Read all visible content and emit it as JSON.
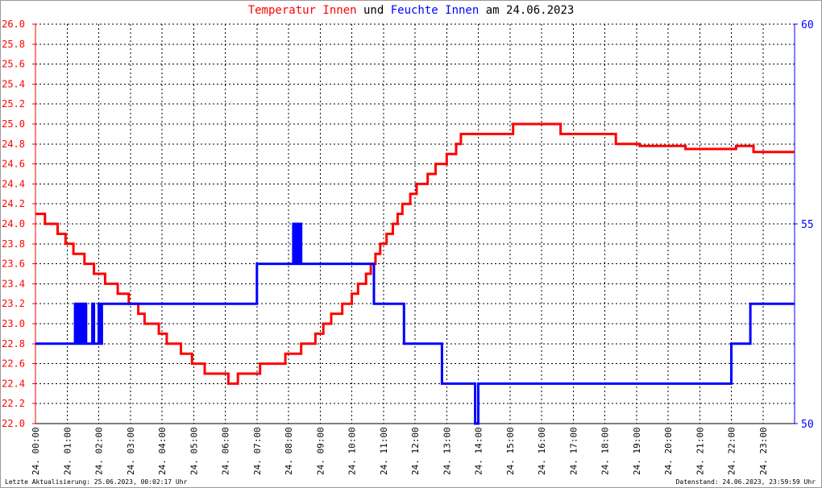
{
  "title": {
    "part1": "Temperatur Innen",
    "part2": "und",
    "part3": "Feuchte Innen",
    "part4": "am 24.06.2023",
    "color1": "#ff0000",
    "color2": "#000000",
    "color3": "#0000ff"
  },
  "footer": {
    "left": "Letzte Aktualisierung: 25.06.2023, 00:02:17 Uhr",
    "right": "Datenstand: 24.06.2023, 23:59:59 Uhr"
  },
  "chart_data": {
    "type": "line",
    "title": "Temperatur Innen und Feuchte Innen am 24.06.2023",
    "xlabel": "",
    "grid": true,
    "x_range": [
      0,
      24
    ],
    "x_ticks": [
      "24. 00:00",
      "24. 01:00",
      "24. 02:00",
      "24. 03:00",
      "24. 04:00",
      "24. 05:00",
      "24. 06:00",
      "24. 07:00",
      "24. 08:00",
      "24. 09:00",
      "24. 10:00",
      "24. 11:00",
      "24. 12:00",
      "24. 13:00",
      "24. 14:00",
      "24. 15:00",
      "24. 16:00",
      "24. 17:00",
      "24. 18:00",
      "24. 19:00",
      "24. 20:00",
      "24. 21:00",
      "24. 22:00",
      "24. 23:00"
    ],
    "y_left": {
      "min": 22.0,
      "max": 26.0,
      "color": "#ff0000",
      "ticks": [
        "22.0",
        "22.2",
        "22.4",
        "22.6",
        "22.8",
        "23.0",
        "23.2",
        "23.4",
        "23.6",
        "23.8",
        "24.0",
        "24.2",
        "24.4",
        "24.6",
        "24.8",
        "25.0",
        "25.2",
        "25.4",
        "25.6",
        "25.8",
        "26.0"
      ]
    },
    "y_right": {
      "min": 50,
      "max": 60,
      "color": "#0000ff",
      "ticks": [
        "50",
        "55",
        "60"
      ]
    },
    "series": [
      {
        "axis": "left",
        "color": "#ff0000",
        "points": [
          [
            0.0,
            24.1
          ],
          [
            0.3,
            24.0
          ],
          [
            0.7,
            23.9
          ],
          [
            0.95,
            23.8
          ],
          [
            1.2,
            23.7
          ],
          [
            1.55,
            23.6
          ],
          [
            1.85,
            23.5
          ],
          [
            2.2,
            23.4
          ],
          [
            2.6,
            23.3
          ],
          [
            2.95,
            23.2
          ],
          [
            3.25,
            23.1
          ],
          [
            3.45,
            23.0
          ],
          [
            3.9,
            22.9
          ],
          [
            4.15,
            22.8
          ],
          [
            4.6,
            22.7
          ],
          [
            4.95,
            22.6
          ],
          [
            5.35,
            22.5
          ],
          [
            6.0,
            22.5
          ],
          [
            6.1,
            22.4
          ],
          [
            6.4,
            22.5
          ],
          [
            7.0,
            22.5
          ],
          [
            7.1,
            22.6
          ],
          [
            7.75,
            22.6
          ],
          [
            7.9,
            22.7
          ],
          [
            8.3,
            22.7
          ],
          [
            8.4,
            22.8
          ],
          [
            8.75,
            22.8
          ],
          [
            8.85,
            22.9
          ],
          [
            9.1,
            23.0
          ],
          [
            9.35,
            23.1
          ],
          [
            9.7,
            23.2
          ],
          [
            10.0,
            23.3
          ],
          [
            10.2,
            23.4
          ],
          [
            10.45,
            23.5
          ],
          [
            10.6,
            23.6
          ],
          [
            10.75,
            23.7
          ],
          [
            10.9,
            23.8
          ],
          [
            11.1,
            23.9
          ],
          [
            11.3,
            24.0
          ],
          [
            11.45,
            24.1
          ],
          [
            11.6,
            24.2
          ],
          [
            11.85,
            24.3
          ],
          [
            12.05,
            24.4
          ],
          [
            12.4,
            24.5
          ],
          [
            12.65,
            24.6
          ],
          [
            13.0,
            24.7
          ],
          [
            13.3,
            24.8
          ],
          [
            13.45,
            24.9
          ],
          [
            15.0,
            24.9
          ],
          [
            15.1,
            25.0
          ],
          [
            16.5,
            25.0
          ],
          [
            16.6,
            24.9
          ],
          [
            18.25,
            24.9
          ],
          [
            18.35,
            24.8
          ],
          [
            19.0,
            24.8
          ],
          [
            19.1,
            24.78
          ],
          [
            20.45,
            24.78
          ],
          [
            20.55,
            24.75
          ],
          [
            22.05,
            24.75
          ],
          [
            22.15,
            24.78
          ],
          [
            22.6,
            24.78
          ],
          [
            22.7,
            24.72
          ],
          [
            24.0,
            24.72
          ]
        ]
      },
      {
        "axis": "right",
        "color": "#0000ff",
        "points": [
          [
            0.0,
            52
          ],
          [
            1.2,
            52
          ],
          [
            1.25,
            53
          ],
          [
            1.3,
            52
          ],
          [
            1.35,
            53
          ],
          [
            1.4,
            52
          ],
          [
            1.45,
            53
          ],
          [
            1.5,
            52
          ],
          [
            1.55,
            53
          ],
          [
            1.6,
            52
          ],
          [
            1.75,
            52
          ],
          [
            1.8,
            53
          ],
          [
            1.85,
            52
          ],
          [
            1.95,
            52
          ],
          [
            2.0,
            53
          ],
          [
            2.05,
            52
          ],
          [
            2.1,
            53
          ],
          [
            6.95,
            53
          ],
          [
            7.0,
            54
          ],
          [
            8.1,
            54
          ],
          [
            8.15,
            55
          ],
          [
            8.2,
            54
          ],
          [
            8.25,
            55
          ],
          [
            8.3,
            54
          ],
          [
            8.35,
            55
          ],
          [
            8.4,
            54
          ],
          [
            10.65,
            54
          ],
          [
            10.7,
            53
          ],
          [
            11.6,
            53
          ],
          [
            11.65,
            52
          ],
          [
            12.8,
            52
          ],
          [
            12.85,
            51
          ],
          [
            13.85,
            51
          ],
          [
            13.9,
            50
          ],
          [
            13.95,
            50
          ],
          [
            14.0,
            51
          ],
          [
            21.95,
            51
          ],
          [
            22.0,
            52
          ],
          [
            22.55,
            52
          ],
          [
            22.6,
            53
          ],
          [
            24.0,
            53
          ]
        ]
      }
    ]
  }
}
